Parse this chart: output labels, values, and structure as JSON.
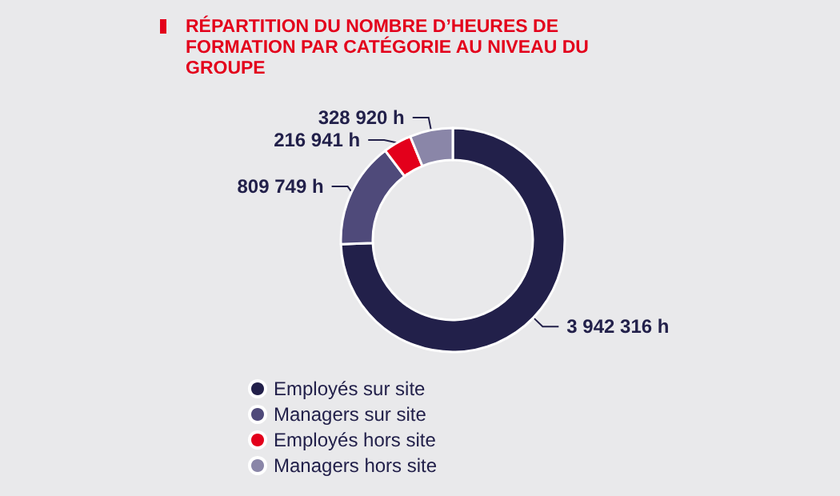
{
  "chart_data": {
    "type": "donut",
    "title": "RÉPARTITION DU NOMBRE D’HEURES DE FORMATION PAR CATÉGORIE AU NIVEAU DU GROUPE",
    "categories": [
      "Employés sur site",
      "Managers sur site",
      "Employés hors site",
      "Managers hors site"
    ],
    "values": [
      3942316,
      809749,
      216941,
      328920
    ],
    "colors": [
      "#22204a",
      "#4f4a7a",
      "#e3001b",
      "#8a86a8"
    ],
    "value_labels": [
      "3 942 316 h",
      "809 749 h",
      "216 941 h",
      "328 920 h"
    ],
    "legend": "bottom left"
  }
}
